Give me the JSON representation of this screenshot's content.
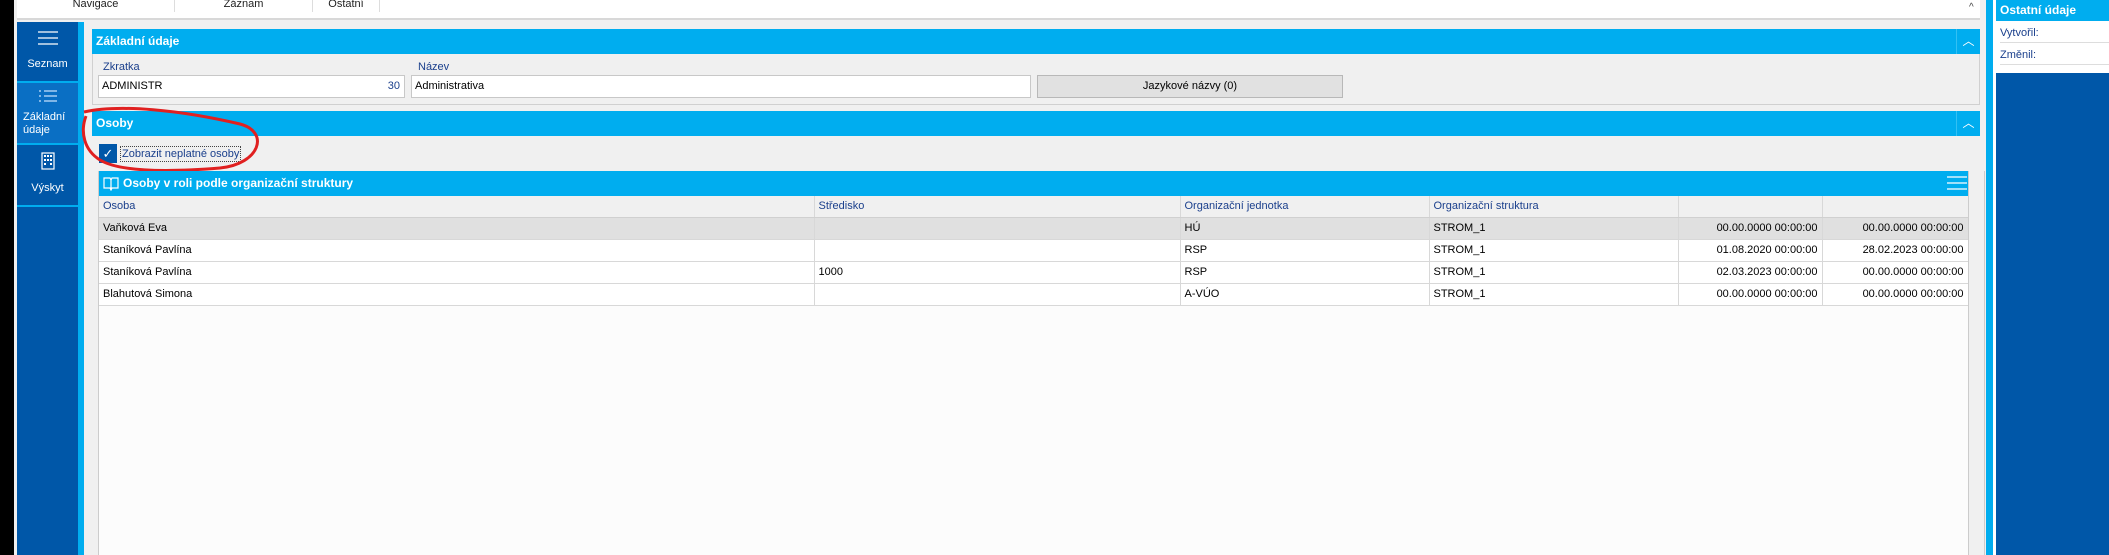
{
  "menu": {
    "items": [
      "Navigace",
      "Záznam",
      "Ostatní"
    ]
  },
  "sidebar": {
    "items": [
      {
        "label": "Seznam",
        "icon": "hamburger-icon"
      },
      {
        "label": "Základní údaje",
        "icon": "list-icon",
        "active": true
      },
      {
        "label": "Výskyt",
        "icon": "building-icon"
      }
    ]
  },
  "basic": {
    "title": "Základní údaje",
    "zkratka_label": "Zkratka",
    "zkratka_value": "ADMINISTR",
    "zkratka_count": "30",
    "nazev_label": "Název",
    "nazev_value": "Administrativa",
    "lang_button": "Jazykové názvy (0)"
  },
  "persons": {
    "title": "Osoby",
    "checkbox_label": "Zobrazit neplatné osoby",
    "checkbox_checked": true
  },
  "grid": {
    "title": "Osoby v roli podle organizační struktury",
    "columns": [
      "Osoba",
      "Středisko",
      "Organizační jednotka",
      "Organizační struktura",
      "",
      ""
    ],
    "rows": [
      [
        "Vaňková Eva",
        "",
        "HÚ",
        "STROM_1",
        "00.00.0000 00:00:00",
        "00.00.0000 00:00:00"
      ],
      [
        "Staníková Pavlína",
        "",
        "RSP",
        "STROM_1",
        "01.08.2020 00:00:00",
        "28.02.2023 00:00:00"
      ],
      [
        "Staníková Pavlína",
        "1000",
        "RSP",
        "STROM_1",
        "02.03.2023 00:00:00",
        "00.00.0000 00:00:00"
      ],
      [
        "Blahutová Simona",
        "",
        "A-VÚO",
        "STROM_1",
        "00.00.0000 00:00:00",
        "00.00.0000 00:00:00"
      ]
    ]
  },
  "right_panel": {
    "title": "Ostatní údaje",
    "created_label": "Vytvořil:",
    "changed_label": "Změnil:"
  },
  "colors": {
    "accent": "#00adef",
    "sidebar": "#0057a8",
    "annotation": "#e02020"
  }
}
